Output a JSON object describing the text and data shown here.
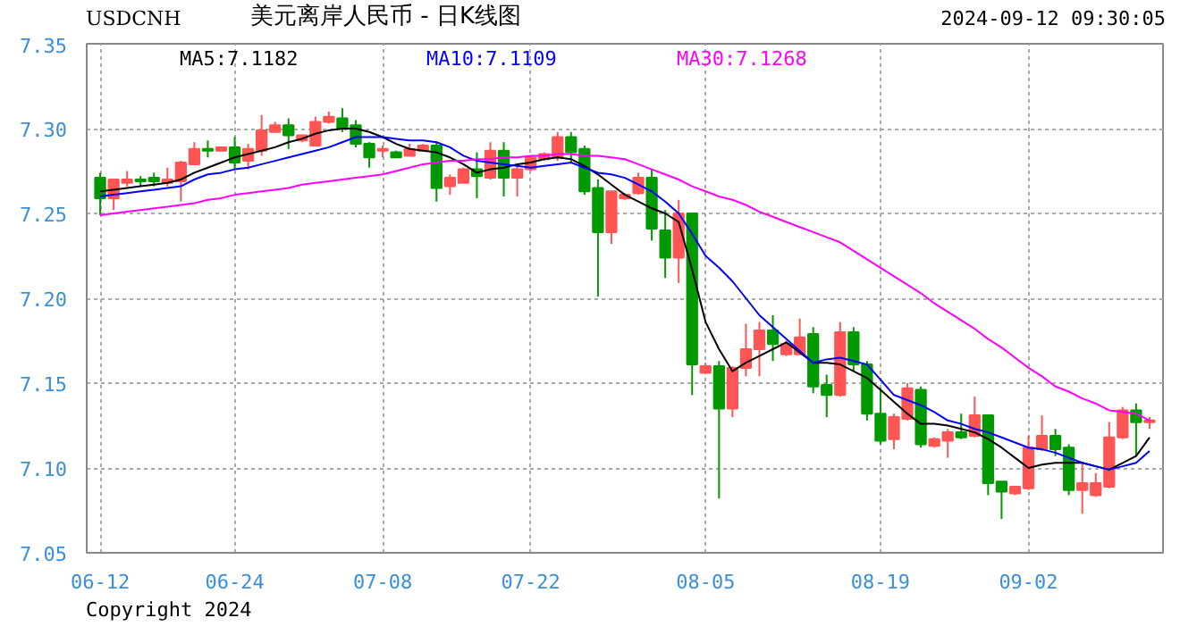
{
  "chart_data": {
    "type": "candlestick",
    "title": "美元离岸人民币 - 日K线图",
    "annotations": [
      "USDCNH",
      "2024-09-12 09:30:05",
      "Copyright 2024"
    ],
    "categories": [
      "06-12",
      null,
      null,
      null,
      null,
      null,
      null,
      null,
      null,
      null,
      "06-24",
      null,
      null,
      null,
      null,
      null,
      null,
      null,
      null,
      null,
      null,
      "07-08",
      null,
      null,
      null,
      null,
      null,
      null,
      null,
      null,
      null,
      null,
      "07-22",
      null,
      null,
      null,
      null,
      null,
      null,
      null,
      null,
      null,
      null,
      null,
      null,
      "08-05",
      null,
      null,
      null,
      null,
      null,
      null,
      null,
      null,
      null,
      null,
      null,
      null,
      "08-19",
      null,
      null,
      null,
      null,
      null,
      null,
      null,
      null,
      null,
      null,
      "09-02",
      null,
      null,
      null,
      null,
      null,
      null,
      null,
      null,
      null
    ],
    "ohlc": [
      [
        7.271,
        7.274,
        7.249,
        7.259
      ],
      [
        7.259,
        7.27,
        7.252,
        7.27
      ],
      [
        7.268,
        7.275,
        7.266,
        7.27
      ],
      [
        7.27,
        7.272,
        7.266,
        7.269
      ],
      [
        7.271,
        7.274,
        7.266,
        7.269
      ],
      [
        7.268,
        7.277,
        7.266,
        7.27
      ],
      [
        7.269,
        7.281,
        7.257,
        7.28
      ],
      [
        7.279,
        7.292,
        7.279,
        7.288
      ],
      [
        7.288,
        7.293,
        7.283,
        7.287
      ],
      [
        7.287,
        7.289,
        7.287,
        7.289
      ],
      [
        7.289,
        7.295,
        7.276,
        7.28
      ],
      [
        7.281,
        7.291,
        7.276,
        7.288
      ],
      [
        7.287,
        7.308,
        7.284,
        7.299
      ],
      [
        7.298,
        7.304,
        7.298,
        7.302
      ],
      [
        7.302,
        7.306,
        7.288,
        7.296
      ],
      [
        7.293,
        7.296,
        7.292,
        7.296
      ],
      [
        7.29,
        7.307,
        7.29,
        7.304
      ],
      [
        7.304,
        7.31,
        7.303,
        7.307
      ],
      [
        7.306,
        7.312,
        7.298,
        7.3
      ],
      [
        7.302,
        7.305,
        7.289,
        7.291
      ],
      [
        7.291,
        7.292,
        7.277,
        7.283
      ],
      [
        7.287,
        7.29,
        7.283,
        7.288
      ],
      [
        7.286,
        7.287,
        7.283,
        7.283
      ],
      [
        7.284,
        7.291,
        7.284,
        7.288
      ],
      [
        7.287,
        7.291,
        7.287,
        7.29
      ],
      [
        7.29,
        7.292,
        7.257,
        7.265
      ],
      [
        7.266,
        7.273,
        7.261,
        7.271
      ],
      [
        7.268,
        7.277,
        7.268,
        7.276
      ],
      [
        7.276,
        7.286,
        7.259,
        7.272
      ],
      [
        7.271,
        7.292,
        7.27,
        7.287
      ],
      [
        7.287,
        7.292,
        7.26,
        7.271
      ],
      [
        7.271,
        7.279,
        7.26,
        7.276
      ],
      [
        7.276,
        7.284,
        7.275,
        7.283
      ],
      [
        7.282,
        7.286,
        7.281,
        7.285
      ],
      [
        7.283,
        7.298,
        7.281,
        7.295
      ],
      [
        7.295,
        7.298,
        7.28,
        7.286
      ],
      [
        7.288,
        7.29,
        7.261,
        7.263
      ],
      [
        7.265,
        7.27,
        7.201,
        7.239
      ],
      [
        7.239,
        7.263,
        7.232,
        7.263
      ],
      [
        7.259,
        7.262,
        7.258,
        7.261
      ],
      [
        7.262,
        7.274,
        7.261,
        7.271
      ],
      [
        7.271,
        7.276,
        7.234,
        7.241
      ],
      [
        7.24,
        7.252,
        7.212,
        7.224
      ],
      [
        7.224,
        7.258,
        7.209,
        7.25
      ],
      [
        7.25,
        7.25,
        7.143,
        7.161
      ],
      [
        7.156,
        7.162,
        7.156,
        7.16
      ],
      [
        7.16,
        7.163,
        7.082,
        7.135
      ],
      [
        7.135,
        7.16,
        7.13,
        7.159
      ],
      [
        7.159,
        7.185,
        7.154,
        7.17
      ],
      [
        7.17,
        7.186,
        7.154,
        7.181
      ],
      [
        7.181,
        7.19,
        7.163,
        7.173
      ],
      [
        7.167,
        7.175,
        7.166,
        7.173
      ],
      [
        7.167,
        7.188,
        7.167,
        7.177
      ],
      [
        7.179,
        7.183,
        7.144,
        7.148
      ],
      [
        7.149,
        7.155,
        7.13,
        7.143
      ],
      [
        7.143,
        7.186,
        7.142,
        7.18
      ],
      [
        7.18,
        7.183,
        7.157,
        7.161
      ],
      [
        7.161,
        7.163,
        7.128,
        7.132
      ],
      [
        7.132,
        7.147,
        7.114,
        7.116
      ],
      [
        7.117,
        7.132,
        7.111,
        7.13
      ],
      [
        7.129,
        7.15,
        7.128,
        7.147
      ],
      [
        7.146,
        7.148,
        7.112,
        7.114
      ],
      [
        7.113,
        7.118,
        7.112,
        7.117
      ],
      [
        7.116,
        7.123,
        7.106,
        7.121
      ],
      [
        7.121,
        7.132,
        7.117,
        7.118
      ],
      [
        7.119,
        7.142,
        7.118,
        7.131
      ],
      [
        7.131,
        7.131,
        7.084,
        7.091
      ],
      [
        7.092,
        7.092,
        7.07,
        7.086
      ],
      [
        7.085,
        7.089,
        7.084,
        7.089
      ],
      [
        7.088,
        7.119,
        7.087,
        7.112
      ],
      [
        7.111,
        7.131,
        7.11,
        7.119
      ],
      [
        7.119,
        7.123,
        7.107,
        7.111
      ],
      [
        7.112,
        7.114,
        7.084,
        7.087
      ],
      [
        7.087,
        7.103,
        7.073,
        7.091
      ],
      [
        7.084,
        7.097,
        7.083,
        7.091
      ],
      [
        7.089,
        7.127,
        7.088,
        7.118
      ],
      [
        7.118,
        7.136,
        7.117,
        7.134
      ],
      [
        7.134,
        7.138,
        7.107,
        7.127
      ],
      [
        7.127,
        7.13,
        7.123,
        7.128
      ]
    ],
    "colors": [
      "#009900",
      "#ff5555",
      "#ff5555",
      "#009900",
      "#009900",
      "#ff5555",
      "#ff5555",
      "#ff5555",
      "#009900",
      "#ff5555",
      "#009900",
      "#ff5555",
      "#ff5555",
      "#ff5555",
      "#009900",
      "#ff5555",
      "#ff5555",
      "#ff5555",
      "#009900",
      "#009900",
      "#009900",
      "#ff5555",
      "#009900",
      "#ff5555",
      "#ff5555",
      "#009900",
      "#ff5555",
      "#ff5555",
      "#009900",
      "#ff5555",
      "#009900",
      "#ff5555",
      "#ff5555",
      "#ff5555",
      "#ff5555",
      "#009900",
      "#009900",
      "#009900",
      "#ff5555",
      "#ff5555",
      "#ff5555",
      "#009900",
      "#009900",
      "#ff5555",
      "#009900",
      "#ff5555",
      "#009900",
      "#ff5555",
      "#ff5555",
      "#ff5555",
      "#009900",
      "#ff5555",
      "#ff5555",
      "#009900",
      "#009900",
      "#ff5555",
      "#009900",
      "#009900",
      "#009900",
      "#ff5555",
      "#ff5555",
      "#009900",
      "#ff5555",
      "#ff5555",
      "#009900",
      "#ff5555",
      "#009900",
      "#009900",
      "#ff5555",
      "#ff5555",
      "#ff5555",
      "#009900",
      "#009900",
      "#ff5555",
      "#ff5555",
      "#ff5555",
      "#ff5555",
      "#009900",
      "#ff5555"
    ],
    "series": [
      {
        "type": "line",
        "name": "MA5:7.1182",
        "color": "#000000",
        "values": [
          7.263,
          7.264,
          7.265,
          7.266,
          7.267,
          7.268,
          7.27,
          7.274,
          7.277,
          7.28,
          7.283,
          7.285,
          7.287,
          7.289,
          7.292,
          7.294,
          7.297,
          7.299,
          7.3,
          7.3,
          7.298,
          7.295,
          7.291,
          7.288,
          7.287,
          7.286,
          7.283,
          7.279,
          7.274,
          7.276,
          7.277,
          7.279,
          7.28,
          7.282,
          7.283,
          7.282,
          7.278,
          7.273,
          7.267,
          7.261,
          7.257,
          7.253,
          7.25,
          7.245,
          7.217,
          7.186,
          7.17,
          7.157,
          7.162,
          7.166,
          7.17,
          7.174,
          7.168,
          7.162,
          7.162,
          7.161,
          7.157,
          7.153,
          7.146,
          7.139,
          7.132,
          7.126,
          7.126,
          7.125,
          7.123,
          7.121,
          7.117,
          7.112,
          7.106,
          7.1,
          7.102,
          7.103,
          7.103,
          7.103,
          7.101,
          7.099,
          7.103,
          7.107,
          7.118
        ]
      },
      {
        "type": "line",
        "name": "MA10:7.1109",
        "color": "#0000ff",
        "values": [
          7.26,
          7.261,
          7.262,
          7.263,
          7.264,
          7.265,
          7.266,
          7.27,
          7.273,
          7.274,
          7.276,
          7.277,
          7.279,
          7.281,
          7.283,
          7.285,
          7.287,
          7.289,
          7.292,
          7.295,
          7.295,
          7.295,
          7.294,
          7.293,
          7.293,
          7.292,
          7.289,
          7.284,
          7.281,
          7.28,
          7.279,
          7.278,
          7.277,
          7.278,
          7.279,
          7.28,
          7.277,
          7.274,
          7.273,
          7.271,
          7.267,
          7.263,
          7.257,
          7.25,
          7.238,
          7.225,
          7.218,
          7.21,
          7.2,
          7.19,
          7.183,
          7.176,
          7.169,
          7.162,
          7.164,
          7.165,
          7.163,
          7.161,
          7.152,
          7.143,
          7.14,
          7.137,
          7.133,
          7.128,
          7.126,
          7.123,
          7.121,
          7.118,
          7.115,
          7.112,
          7.111,
          7.109,
          7.106,
          7.103,
          7.101,
          7.099,
          7.101,
          7.103,
          7.11
        ]
      },
      {
        "type": "line",
        "name": "MA30:7.1268",
        "color": "#ff00ff",
        "values": [
          7.249,
          7.25,
          7.251,
          7.252,
          7.253,
          7.254,
          7.255,
          7.256,
          7.258,
          7.259,
          7.261,
          7.262,
          7.263,
          7.264,
          7.265,
          7.267,
          7.268,
          7.269,
          7.27,
          7.271,
          7.272,
          7.273,
          7.275,
          7.277,
          7.279,
          7.28,
          7.281,
          7.281,
          7.282,
          7.282,
          7.283,
          7.283,
          7.284,
          7.284,
          7.285,
          7.285,
          7.284,
          7.284,
          7.283,
          7.282,
          7.279,
          7.276,
          7.273,
          7.27,
          7.266,
          7.263,
          7.26,
          7.258,
          7.255,
          7.251,
          7.248,
          7.245,
          7.242,
          7.239,
          7.236,
          7.233,
          7.228,
          7.223,
          7.218,
          7.213,
          7.208,
          7.203,
          7.197,
          7.192,
          7.187,
          7.182,
          7.176,
          7.171,
          7.165,
          7.159,
          7.154,
          7.148,
          7.145,
          7.141,
          7.138,
          7.134,
          7.133,
          7.132,
          7.128
        ]
      }
    ],
    "ylim": [
      7.05,
      7.35
    ],
    "yticks": [
      {
        "value": 7.05,
        "label": "7.05"
      },
      {
        "value": 7.1,
        "label": "7.10"
      },
      {
        "value": 7.15,
        "label": "7.15"
      },
      {
        "value": 7.2,
        "label": "7.20"
      },
      {
        "value": 7.25,
        "label": "7.25"
      },
      {
        "value": 7.3,
        "label": "7.30"
      },
      {
        "value": 7.35,
        "label": "7.35"
      }
    ],
    "grid": true,
    "legend": "top left"
  }
}
